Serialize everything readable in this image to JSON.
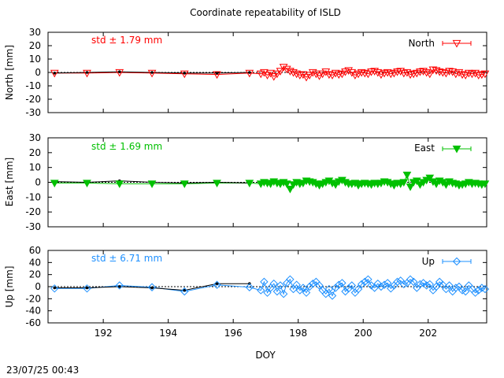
{
  "title": "Coordinate repeatability of ISLD",
  "timestamp": "23/07/25 00:43",
  "chart_data": {
    "type": "line",
    "title": "Coordinate repeatability of ISLD",
    "xlabel": "DOY",
    "xlim": [
      190.3,
      203.8
    ],
    "xticks": [
      192,
      194,
      196,
      198,
      200,
      202
    ],
    "panels": [
      {
        "key": "north",
        "ylabel": "North [mm]",
        "ylim": [
          -30,
          30
        ],
        "yticks": [
          -30,
          -20,
          -10,
          0,
          10,
          20,
          30
        ],
        "std_label": "std ± 1.79 mm",
        "legend": "North",
        "color": "#ff0000",
        "marker": "triangle-down-open",
        "black_series": {
          "x": [
            190.5,
            191.5,
            192.5,
            193.5,
            194.5,
            195.5,
            196.5
          ],
          "values": [
            -0.5,
            0.0,
            0.5,
            0.0,
            -0.5,
            -0.5,
            0.0
          ]
        },
        "series": {
          "x": [
            190.5,
            191.5,
            192.5,
            193.5,
            194.5,
            195.5,
            196.5,
            196.85,
            196.95,
            197.05,
            197.15,
            197.25,
            197.35,
            197.45,
            197.55,
            197.65,
            197.75,
            197.85,
            197.95,
            198.05,
            198.15,
            198.25,
            198.35,
            198.45,
            198.55,
            198.65,
            198.75,
            198.85,
            198.95,
            199.05,
            199.15,
            199.25,
            199.35,
            199.45,
            199.55,
            199.65,
            199.75,
            199.85,
            199.95,
            200.05,
            200.15,
            200.25,
            200.35,
            200.45,
            200.55,
            200.65,
            200.75,
            200.85,
            200.95,
            201.05,
            201.15,
            201.25,
            201.35,
            201.45,
            201.55,
            201.65,
            201.75,
            201.85,
            201.95,
            202.05,
            202.15,
            202.25,
            202.35,
            202.45,
            202.55,
            202.65,
            202.75,
            202.85,
            202.95,
            203.05,
            203.15,
            203.25,
            203.35,
            203.45,
            203.55,
            203.65,
            203.75
          ],
          "values": [
            -0.5,
            -0.5,
            0.0,
            -0.5,
            -1.0,
            -1.5,
            -0.5,
            -1.0,
            0.0,
            -2.0,
            -0.5,
            -3.0,
            -1.0,
            1.0,
            4.0,
            2.5,
            1.0,
            0.0,
            -1.0,
            -2.0,
            -1.5,
            -3.5,
            -2.0,
            0.0,
            -1.0,
            -2.5,
            -1.0,
            0.5,
            -1.5,
            -2.0,
            -0.5,
            -1.5,
            -1.0,
            0.5,
            1.5,
            0.0,
            -2.0,
            -1.0,
            0.0,
            -0.5,
            -1.0,
            0.5,
            1.0,
            0.0,
            -1.5,
            -0.5,
            0.0,
            -1.0,
            -0.5,
            0.5,
            1.0,
            -0.5,
            0.0,
            -1.5,
            -1.0,
            -0.5,
            0.5,
            1.0,
            0.0,
            -1.0,
            2.0,
            1.5,
            0.5,
            0.0,
            -0.5,
            1.0,
            0.5,
            -1.0,
            0.0,
            -1.5,
            -2.0,
            -0.5,
            -1.0,
            -0.5,
            -2.0,
            -1.5,
            -1.0
          ]
        }
      },
      {
        "key": "east",
        "ylabel": "East [mm]",
        "ylim": [
          -30,
          30
        ],
        "yticks": [
          -30,
          -20,
          -10,
          0,
          10,
          20,
          30
        ],
        "std_label": "std ± 1.69 mm",
        "legend": "East",
        "color": "#00c000",
        "marker": "triangle-down-filled",
        "black_series": {
          "x": [
            190.5,
            191.5,
            192.5,
            193.5,
            194.5,
            195.5,
            196.5
          ],
          "values": [
            0.5,
            0.0,
            1.0,
            0.0,
            -0.5,
            0.0,
            -0.5
          ]
        },
        "series": {
          "x": [
            190.5,
            191.5,
            192.5,
            193.5,
            194.5,
            195.5,
            196.5,
            196.85,
            196.95,
            197.05,
            197.15,
            197.25,
            197.35,
            197.45,
            197.55,
            197.65,
            197.75,
            197.85,
            197.95,
            198.05,
            198.15,
            198.25,
            198.35,
            198.45,
            198.55,
            198.65,
            198.75,
            198.85,
            198.95,
            199.05,
            199.15,
            199.25,
            199.35,
            199.45,
            199.55,
            199.65,
            199.75,
            199.85,
            199.95,
            200.05,
            200.15,
            200.25,
            200.35,
            200.45,
            200.55,
            200.65,
            200.75,
            200.85,
            200.95,
            201.05,
            201.15,
            201.25,
            201.35,
            201.45,
            201.55,
            201.65,
            201.75,
            201.85,
            201.95,
            202.05,
            202.15,
            202.25,
            202.35,
            202.45,
            202.55,
            202.65,
            202.75,
            202.85,
            202.95,
            203.05,
            203.15,
            203.25,
            203.35,
            203.45,
            203.55,
            203.65,
            203.75
          ],
          "values": [
            -0.5,
            -0.5,
            -1.0,
            -1.0,
            -1.0,
            -0.5,
            -0.5,
            -1.0,
            0.0,
            -0.5,
            -1.0,
            0.5,
            -0.5,
            -1.0,
            0.0,
            -1.0,
            -4.5,
            -1.5,
            0.0,
            -1.0,
            -0.5,
            1.0,
            0.5,
            0.0,
            -1.0,
            -2.0,
            -1.0,
            0.0,
            1.0,
            -0.5,
            -1.5,
            0.5,
            1.5,
            0.0,
            -1.0,
            -1.0,
            -0.5,
            -2.0,
            -1.0,
            -0.5,
            -1.0,
            -1.5,
            -0.5,
            -1.0,
            -0.5,
            0.5,
            0.0,
            -1.0,
            -2.0,
            -0.5,
            -1.0,
            0.0,
            5.0,
            -3.0,
            0.0,
            1.0,
            -1.5,
            0.0,
            1.5,
            3.0,
            0.5,
            -1.0,
            1.0,
            0.0,
            -1.5,
            0.5,
            -0.5,
            -1.0,
            -2.0,
            -1.5,
            -1.0,
            0.0,
            -1.0,
            -0.5,
            -1.0,
            -1.5,
            -1.0
          ]
        }
      },
      {
        "key": "up",
        "ylabel": "Up [mm]",
        "ylim": [
          -60,
          60
        ],
        "yticks": [
          -60,
          -40,
          -20,
          0,
          20,
          40,
          60
        ],
        "std_label": "std ± 6.71 mm",
        "legend": "Up",
        "color": "#1e90ff",
        "marker": "diamond-open",
        "black_series": {
          "x": [
            190.5,
            191.5,
            192.5,
            193.5,
            194.5,
            195.5,
            196.5
          ],
          "values": [
            -2.0,
            -2.0,
            0.0,
            -2.0,
            -6.0,
            5.0,
            5.0
          ]
        },
        "series": {
          "x": [
            190.5,
            191.5,
            192.5,
            193.5,
            194.5,
            195.5,
            196.5,
            196.85,
            196.95,
            197.05,
            197.15,
            197.25,
            197.35,
            197.45,
            197.55,
            197.65,
            197.75,
            197.85,
            197.95,
            198.05,
            198.15,
            198.25,
            198.35,
            198.45,
            198.55,
            198.65,
            198.75,
            198.85,
            198.95,
            199.05,
            199.15,
            199.25,
            199.35,
            199.45,
            199.55,
            199.65,
            199.75,
            199.85,
            199.95,
            200.05,
            200.15,
            200.25,
            200.35,
            200.45,
            200.55,
            200.65,
            200.75,
            200.85,
            200.95,
            201.05,
            201.15,
            201.25,
            201.35,
            201.45,
            201.55,
            201.65,
            201.75,
            201.85,
            201.95,
            202.05,
            202.15,
            202.25,
            202.35,
            202.45,
            202.55,
            202.65,
            202.75,
            202.85,
            202.95,
            203.05,
            203.15,
            203.25,
            203.35,
            203.45,
            203.55,
            203.65,
            203.75
          ],
          "values": [
            -3.0,
            -3.0,
            2.0,
            -1.0,
            -8.0,
            3.0,
            -1.0,
            -6.0,
            8.0,
            -10.0,
            -2.0,
            5.0,
            -8.0,
            2.0,
            -12.0,
            6.0,
            12.0,
            -4.0,
            3.0,
            -6.0,
            -2.0,
            -10.0,
            0.0,
            5.0,
            8.0,
            2.0,
            -6.0,
            -12.0,
            -4.0,
            -15.0,
            -2.0,
            3.0,
            6.0,
            -8.0,
            -3.0,
            2.0,
            -10.0,
            -4.0,
            4.0,
            8.0,
            12.0,
            2.0,
            -2.0,
            5.0,
            0.0,
            3.0,
            6.0,
            -3.0,
            2.0,
            8.0,
            10.0,
            4.0,
            6.0,
            12.0,
            8.0,
            -2.0,
            4.0,
            6.0,
            2.0,
            4.0,
            -6.0,
            0.0,
            8.0,
            3.0,
            -4.0,
            2.0,
            -8.0,
            -2.0,
            0.0,
            -6.0,
            -8.0,
            2.0,
            -4.0,
            -10.0,
            -6.0,
            -2.0,
            -4.0
          ]
        }
      }
    ]
  }
}
